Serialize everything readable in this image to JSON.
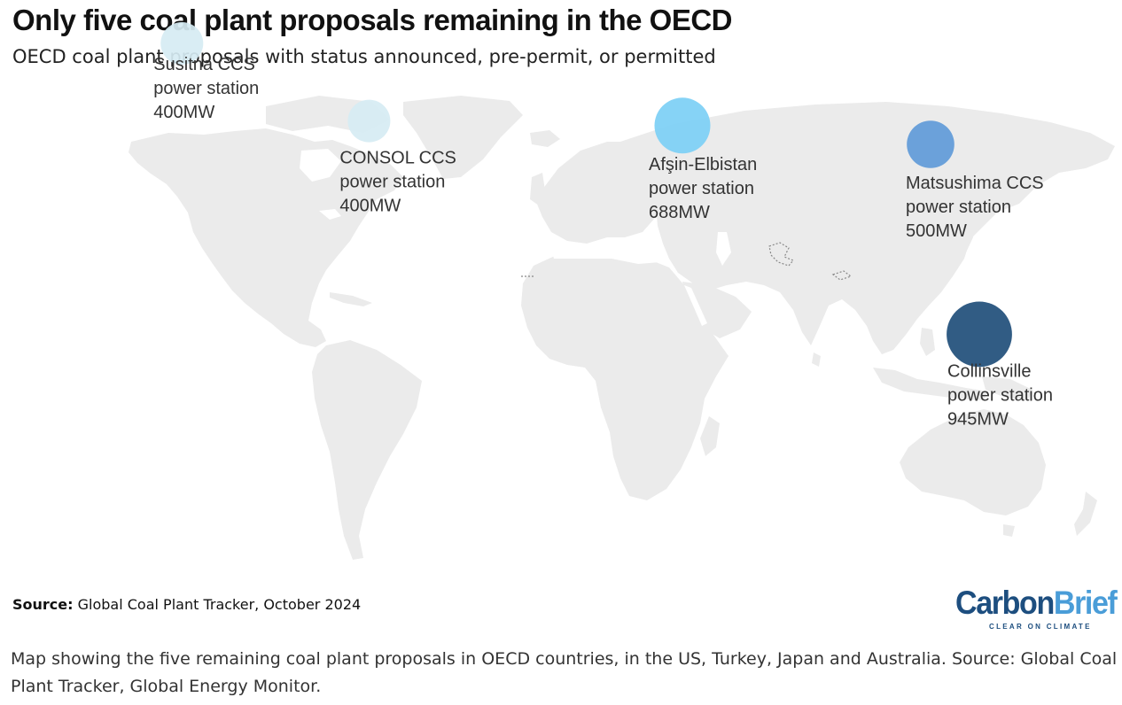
{
  "title": "Only five coal plant proposals remaining in the OECD",
  "subtitle": "OECD coal plant proposals with status announced, pre-permit, or permitted",
  "source_label": "Source:",
  "source_text": "Global Coal Plant Tracker, October 2024",
  "logo": {
    "part1": "Carbon",
    "part2": "Brief",
    "tagline": "CLEAR ON CLIMATE"
  },
  "caption": "Map showing the five remaining coal plant proposals in OECD countries, in the US, Turkey, Japan and Australia. Source: Global Coal Plant Tracker, Global Energy Monitor.",
  "map_style": {
    "land_color": "#ebebeb",
    "background": "#ffffff"
  },
  "plants": [
    {
      "name_line1": "Susitna CCS",
      "name_line2": "power station",
      "capacity": "400MW",
      "capacity_mw": 400,
      "lon": -150.1,
      "lat": 61.5,
      "color": "#d6ecf3"
    },
    {
      "name_line1": "CONSOL CCS",
      "name_line2": "power station",
      "capacity": "400MW",
      "capacity_mw": 400,
      "lon": -80.2,
      "lat": 39.6,
      "color": "#d6ecf3"
    },
    {
      "name_line1": "Afşin-Elbistan",
      "name_line2": "power station",
      "capacity": "688MW",
      "capacity_mw": 688,
      "lon": 36.9,
      "lat": 38.3,
      "color": "#7ccff5"
    },
    {
      "name_line1": "Matsushima CCS",
      "name_line2": "power station",
      "capacity": "500MW",
      "capacity_mw": 500,
      "lon": 129.6,
      "lat": 33.0,
      "color": "#5f9ad8"
    },
    {
      "name_line1": "Collinsville",
      "name_line2": "power station",
      "capacity": "945MW",
      "capacity_mw": 945,
      "lon": 147.8,
      "lat": -20.6,
      "color": "#1f4e7a"
    }
  ]
}
